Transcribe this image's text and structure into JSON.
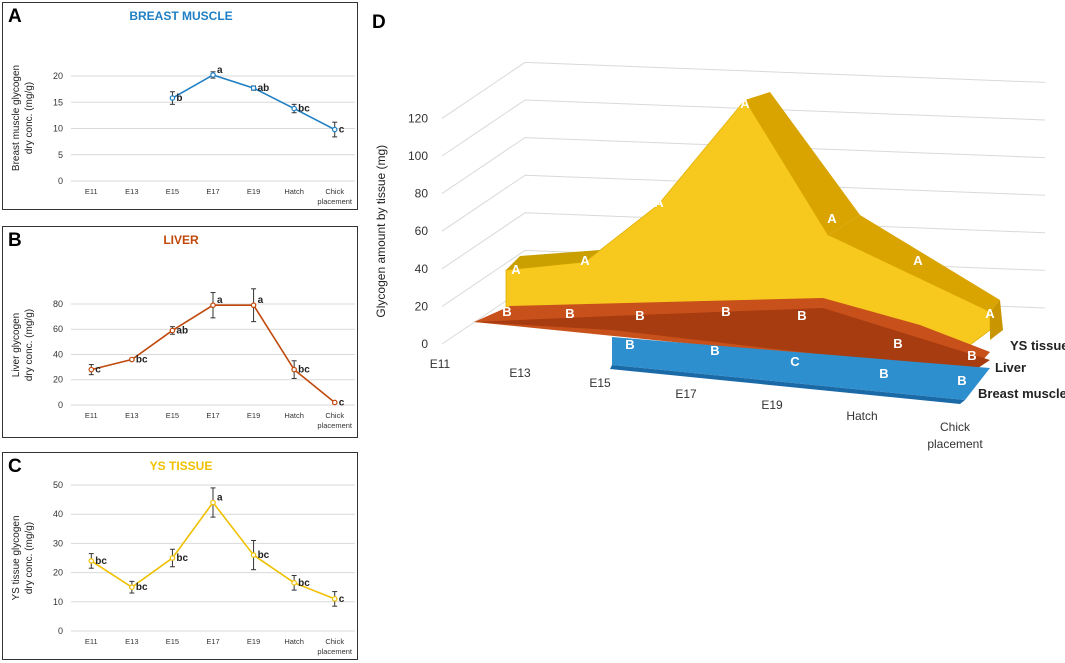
{
  "panels": {
    "A": {
      "letter": "A",
      "title": "BREAST MUSCLE",
      "title_color": "#1f7fc4"
    },
    "B": {
      "letter": "B",
      "title": "LIVER",
      "title_color": "#c0480b"
    },
    "C": {
      "letter": "C",
      "title": "YS TISSUE",
      "title_color": "#f0c000"
    },
    "D": {
      "letter": "D"
    }
  },
  "chart_data": [
    {
      "id": "A",
      "type": "line",
      "title": "BREAST MUSCLE",
      "ylabel_line1": "Breast muscle glycogen",
      "ylabel_line2": "dry conc. (mg/g)",
      "categories": [
        "E11",
        "E13",
        "E15",
        "E17",
        "E19",
        "Hatch",
        "Chick placement"
      ],
      "yticks": [
        0,
        5,
        10,
        15,
        20
      ],
      "ylim": [
        0,
        24
      ],
      "color": "#1f7fc4",
      "points": [
        {
          "cat": "E15",
          "y": 15.8,
          "err": 1.2,
          "label": "b"
        },
        {
          "cat": "E17",
          "y": 20.2,
          "err": 0.6,
          "label": "a"
        },
        {
          "cat": "E19",
          "y": 17.7,
          "err": 0.4,
          "label": "ab"
        },
        {
          "cat": "Hatch",
          "y": 13.8,
          "err": 0.8,
          "label": "bc"
        },
        {
          "cat": "Chick placement",
          "y": 9.8,
          "err": 1.4,
          "label": "c"
        }
      ]
    },
    {
      "id": "B",
      "type": "line",
      "title": "LIVER",
      "ylabel_line1": "Liver glycogen",
      "ylabel_line2": "dry conc. (mg/g)",
      "categories": [
        "E11",
        "E13",
        "E15",
        "E17",
        "E19",
        "Hatch",
        "Chick placement"
      ],
      "yticks": [
        0,
        20,
        40,
        60,
        80
      ],
      "ylim": [
        0,
        95
      ],
      "color": "#c0480b",
      "points": [
        {
          "cat": "E11",
          "y": 28,
          "err": 4,
          "label": "c"
        },
        {
          "cat": "E13",
          "y": 36,
          "err": 1,
          "label": "bc"
        },
        {
          "cat": "E15",
          "y": 59,
          "err": 3,
          "label": "ab"
        },
        {
          "cat": "E17",
          "y": 79,
          "err": 10,
          "label": "a"
        },
        {
          "cat": "E19",
          "y": 79,
          "err": 13,
          "label": "a"
        },
        {
          "cat": "Hatch",
          "y": 28,
          "err": 7,
          "label": "bc"
        },
        {
          "cat": "Chick placement",
          "y": 2,
          "err": 0.5,
          "label": "c"
        }
      ]
    },
    {
      "id": "C",
      "type": "line",
      "title": "YS TISSUE",
      "ylabel_line1": "YS tissue glycogen",
      "ylabel_line2": "dry conc. (mg/g)",
      "categories": [
        "E11",
        "E13",
        "E15",
        "E17",
        "E19",
        "Hatch",
        "Chick placement"
      ],
      "yticks": [
        0,
        10,
        20,
        30,
        40,
        50
      ],
      "ylim": [
        0,
        50
      ],
      "color": "#f0c000",
      "points": [
        {
          "cat": "E11",
          "y": 24,
          "err": 2.5,
          "label": "bc"
        },
        {
          "cat": "E13",
          "y": 15,
          "err": 2,
          "label": "bc"
        },
        {
          "cat": "E15",
          "y": 25,
          "err": 3,
          "label": "bc"
        },
        {
          "cat": "E17",
          "y": 44,
          "err": 5,
          "label": "a"
        },
        {
          "cat": "E19",
          "y": 26,
          "err": 5,
          "label": "bc"
        },
        {
          "cat": "Hatch",
          "y": 16.5,
          "err": 2.5,
          "label": "bc"
        },
        {
          "cat": "Chick placement",
          "y": 11,
          "err": 2.5,
          "label": "c"
        }
      ]
    },
    {
      "id": "D",
      "type": "area",
      "subtype": "3d",
      "ylabel": "Glycogen amount by tissue (mg)",
      "yticks": [
        0,
        20,
        40,
        60,
        80,
        100,
        120
      ],
      "categories": [
        "E11",
        "E13",
        "E15",
        "E17",
        "E19",
        "Hatch",
        "Chick placement"
      ],
      "series": [
        {
          "name": "YS tissue",
          "color": "#f5c518",
          "values": [
            27,
            28,
            60,
            125,
            58,
            38,
            12
          ],
          "labels": [
            "A",
            "A",
            "A",
            "A",
            "A",
            "A",
            "A"
          ]
        },
        {
          "name": "Liver",
          "color": "#c8501a",
          "values": [
            6,
            7,
            8,
            12,
            12,
            5,
            1
          ],
          "labels": [
            "B",
            "B",
            "B",
            "B",
            "B",
            "B",
            "B"
          ]
        },
        {
          "name": "Breast muscle",
          "color": "#2e8fcf",
          "values": [
            null,
            null,
            3,
            3,
            4,
            3,
            2
          ],
          "labels": [
            "",
            "",
            "B",
            "B",
            "C",
            "B",
            "B"
          ]
        }
      ]
    }
  ]
}
